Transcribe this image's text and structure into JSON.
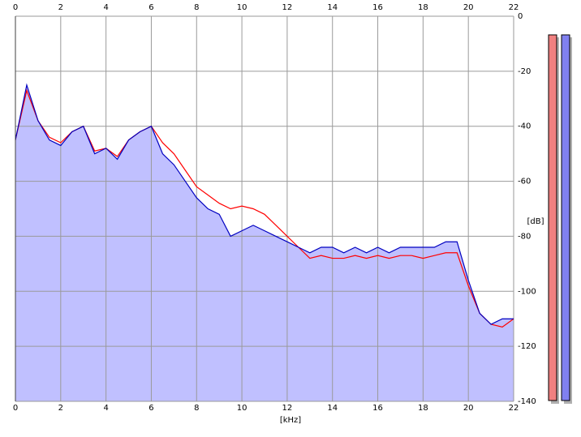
{
  "chart_data": {
    "type": "line",
    "x_label": "[kHz]",
    "y_label": "[dB]",
    "x": [
      0,
      0.5,
      1,
      1.5,
      2,
      2.5,
      3,
      3.5,
      4,
      4.5,
      5,
      5.5,
      6,
      6.5,
      7,
      7.5,
      8,
      8.5,
      9,
      9.5,
      10,
      10.5,
      11,
      11.5,
      12,
      12.5,
      13,
      13.5,
      14,
      14.5,
      15,
      15.5,
      16,
      16.5,
      17,
      17.5,
      18,
      18.5,
      19,
      19.5,
      20,
      20.5,
      21,
      21.5,
      22
    ],
    "series": [
      {
        "color": "#ff0000",
        "values": [
          -45,
          -27,
          -38,
          -44,
          -46,
          -42,
          -40,
          -49,
          -48,
          -51,
          -45,
          -42,
          -40,
          -46,
          -50,
          -56,
          -62,
          -65,
          -68,
          -70,
          -69,
          -70,
          -72,
          -76,
          -80,
          -84,
          -88,
          -87,
          -88,
          -88,
          -87,
          -88,
          -87,
          -88,
          -87,
          -87,
          -88,
          -87,
          -86,
          -86,
          -98,
          -108,
          -112,
          -113,
          -110
        ]
      },
      {
        "color": "#0000c0",
        "values": [
          -45,
          -25,
          -38,
          -45,
          -47,
          -42,
          -40,
          -50,
          -48,
          -52,
          -45,
          -42,
          -40,
          -50,
          -54,
          -60,
          -66,
          -70,
          -72,
          -80,
          -78,
          -76,
          -78,
          -80,
          -82,
          -84,
          -86,
          -84,
          -84,
          -86,
          -84,
          -86,
          -84,
          -86,
          -84,
          -84,
          -84,
          -84,
          -82,
          -82,
          -96,
          -108,
          -112,
          -110,
          -110
        ]
      }
    ],
    "fill_color": "#c0c0ff",
    "xlim": [
      0,
      22
    ],
    "xticks": [
      0,
      2,
      4,
      6,
      8,
      10,
      12,
      14,
      16,
      18,
      20,
      22
    ],
    "ylim": [
      -140,
      0
    ],
    "yticks": [
      0,
      -20,
      -40,
      -60,
      -80,
      -100,
      -120,
      -140
    ],
    "grid": true
  }
}
